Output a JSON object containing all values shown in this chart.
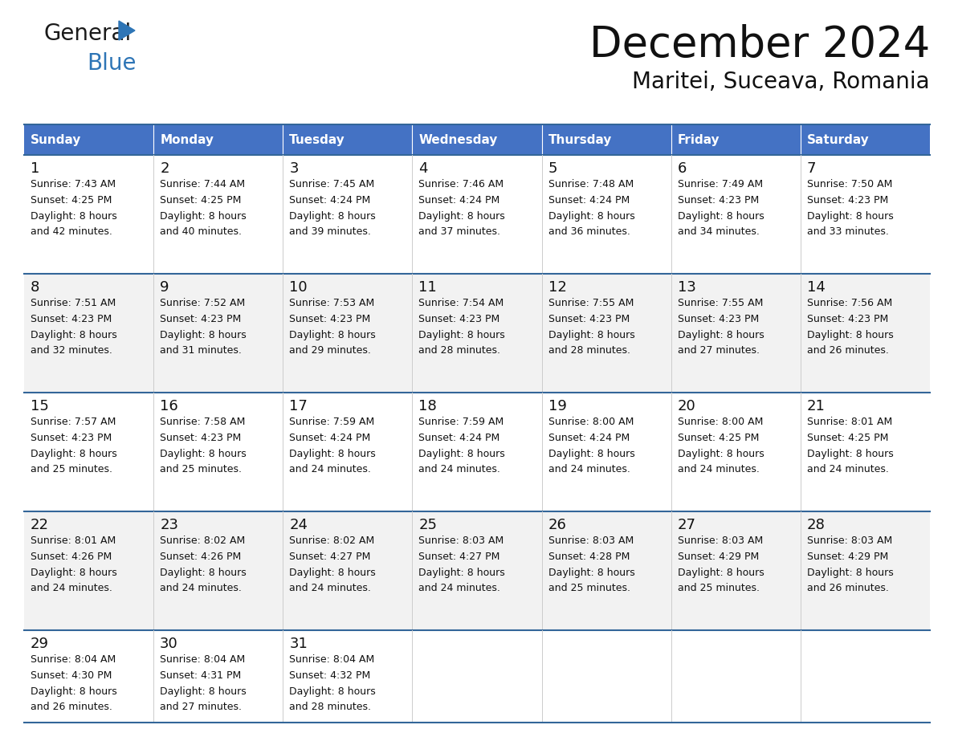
{
  "title": "December 2024",
  "subtitle": "Maritei, Suceava, Romania",
  "header_bg": "#4472C4",
  "header_text_color": "#FFFFFF",
  "row_bg_even": "#FFFFFF",
  "row_bg_odd": "#F2F2F2",
  "border_color": "#336699",
  "days_of_week": [
    "Sunday",
    "Monday",
    "Tuesday",
    "Wednesday",
    "Thursday",
    "Friday",
    "Saturday"
  ],
  "calendar": [
    [
      {
        "day": 1,
        "sunrise": "7:43 AM",
        "sunset": "4:25 PM",
        "daylight": "8 hours and 42 minutes."
      },
      {
        "day": 2,
        "sunrise": "7:44 AM",
        "sunset": "4:25 PM",
        "daylight": "8 hours and 40 minutes."
      },
      {
        "day": 3,
        "sunrise": "7:45 AM",
        "sunset": "4:24 PM",
        "daylight": "8 hours and 39 minutes."
      },
      {
        "day": 4,
        "sunrise": "7:46 AM",
        "sunset": "4:24 PM",
        "daylight": "8 hours and 37 minutes."
      },
      {
        "day": 5,
        "sunrise": "7:48 AM",
        "sunset": "4:24 PM",
        "daylight": "8 hours and 36 minutes."
      },
      {
        "day": 6,
        "sunrise": "7:49 AM",
        "sunset": "4:23 PM",
        "daylight": "8 hours and 34 minutes."
      },
      {
        "day": 7,
        "sunrise": "7:50 AM",
        "sunset": "4:23 PM",
        "daylight": "8 hours and 33 minutes."
      }
    ],
    [
      {
        "day": 8,
        "sunrise": "7:51 AM",
        "sunset": "4:23 PM",
        "daylight": "8 hours and 32 minutes."
      },
      {
        "day": 9,
        "sunrise": "7:52 AM",
        "sunset": "4:23 PM",
        "daylight": "8 hours and 31 minutes."
      },
      {
        "day": 10,
        "sunrise": "7:53 AM",
        "sunset": "4:23 PM",
        "daylight": "8 hours and 29 minutes."
      },
      {
        "day": 11,
        "sunrise": "7:54 AM",
        "sunset": "4:23 PM",
        "daylight": "8 hours and 28 minutes."
      },
      {
        "day": 12,
        "sunrise": "7:55 AM",
        "sunset": "4:23 PM",
        "daylight": "8 hours and 28 minutes."
      },
      {
        "day": 13,
        "sunrise": "7:55 AM",
        "sunset": "4:23 PM",
        "daylight": "8 hours and 27 minutes."
      },
      {
        "day": 14,
        "sunrise": "7:56 AM",
        "sunset": "4:23 PM",
        "daylight": "8 hours and 26 minutes."
      }
    ],
    [
      {
        "day": 15,
        "sunrise": "7:57 AM",
        "sunset": "4:23 PM",
        "daylight": "8 hours and 25 minutes."
      },
      {
        "day": 16,
        "sunrise": "7:58 AM",
        "sunset": "4:23 PM",
        "daylight": "8 hours and 25 minutes."
      },
      {
        "day": 17,
        "sunrise": "7:59 AM",
        "sunset": "4:24 PM",
        "daylight": "8 hours and 24 minutes."
      },
      {
        "day": 18,
        "sunrise": "7:59 AM",
        "sunset": "4:24 PM",
        "daylight": "8 hours and 24 minutes."
      },
      {
        "day": 19,
        "sunrise": "8:00 AM",
        "sunset": "4:24 PM",
        "daylight": "8 hours and 24 minutes."
      },
      {
        "day": 20,
        "sunrise": "8:00 AM",
        "sunset": "4:25 PM",
        "daylight": "8 hours and 24 minutes."
      },
      {
        "day": 21,
        "sunrise": "8:01 AM",
        "sunset": "4:25 PM",
        "daylight": "8 hours and 24 minutes."
      }
    ],
    [
      {
        "day": 22,
        "sunrise": "8:01 AM",
        "sunset": "4:26 PM",
        "daylight": "8 hours and 24 minutes."
      },
      {
        "day": 23,
        "sunrise": "8:02 AM",
        "sunset": "4:26 PM",
        "daylight": "8 hours and 24 minutes."
      },
      {
        "day": 24,
        "sunrise": "8:02 AM",
        "sunset": "4:27 PM",
        "daylight": "8 hours and 24 minutes."
      },
      {
        "day": 25,
        "sunrise": "8:03 AM",
        "sunset": "4:27 PM",
        "daylight": "8 hours and 24 minutes."
      },
      {
        "day": 26,
        "sunrise": "8:03 AM",
        "sunset": "4:28 PM",
        "daylight": "8 hours and 25 minutes."
      },
      {
        "day": 27,
        "sunrise": "8:03 AM",
        "sunset": "4:29 PM",
        "daylight": "8 hours and 25 minutes."
      },
      {
        "day": 28,
        "sunrise": "8:03 AM",
        "sunset": "4:29 PM",
        "daylight": "8 hours and 26 minutes."
      }
    ],
    [
      {
        "day": 29,
        "sunrise": "8:04 AM",
        "sunset": "4:30 PM",
        "daylight": "8 hours and 26 minutes."
      },
      {
        "day": 30,
        "sunrise": "8:04 AM",
        "sunset": "4:31 PM",
        "daylight": "8 hours and 27 minutes."
      },
      {
        "day": 31,
        "sunrise": "8:04 AM",
        "sunset": "4:32 PM",
        "daylight": "8 hours and 28 minutes."
      },
      null,
      null,
      null,
      null
    ]
  ],
  "logo_general_color": "#1a1a1a",
  "logo_blue_color": "#2E75B6",
  "triangle_color": "#2E75B6"
}
